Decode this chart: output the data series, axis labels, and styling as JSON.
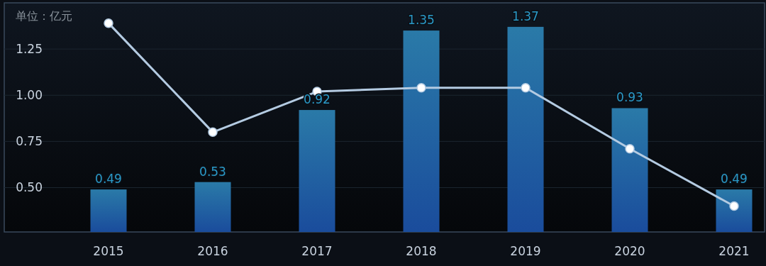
{
  "chart_data": {
    "type": "bar",
    "ylabel": "单位：亿元",
    "categories": [
      "2015",
      "2016",
      "2017",
      "2018",
      "2019",
      "2020",
      "2021"
    ],
    "series": [
      {
        "type": "bar",
        "color": "#1a4c9c",
        "values": [
          0.49,
          0.53,
          0.92,
          1.35,
          1.37,
          0.93,
          0.49
        ],
        "value_labels": [
          "0.49",
          "0.53",
          "0.92",
          "1.35",
          "1.37",
          "0.93",
          "0.49"
        ]
      },
      {
        "type": "line",
        "color": "#b4cbe2",
        "marker": "circle",
        "values": [
          1.39,
          0.8,
          1.02,
          1.04,
          1.04,
          0.71,
          0.4
        ]
      }
    ],
    "ylim": [
      0.26,
      1.5
    ],
    "yticks": [
      {
        "value": 0.5,
        "label": "0.50"
      },
      {
        "value": 0.75,
        "label": "0.75"
      },
      {
        "value": 1.0,
        "label": "1.00"
      },
      {
        "value": 1.25,
        "label": "1.25"
      }
    ],
    "grid": "y"
  }
}
